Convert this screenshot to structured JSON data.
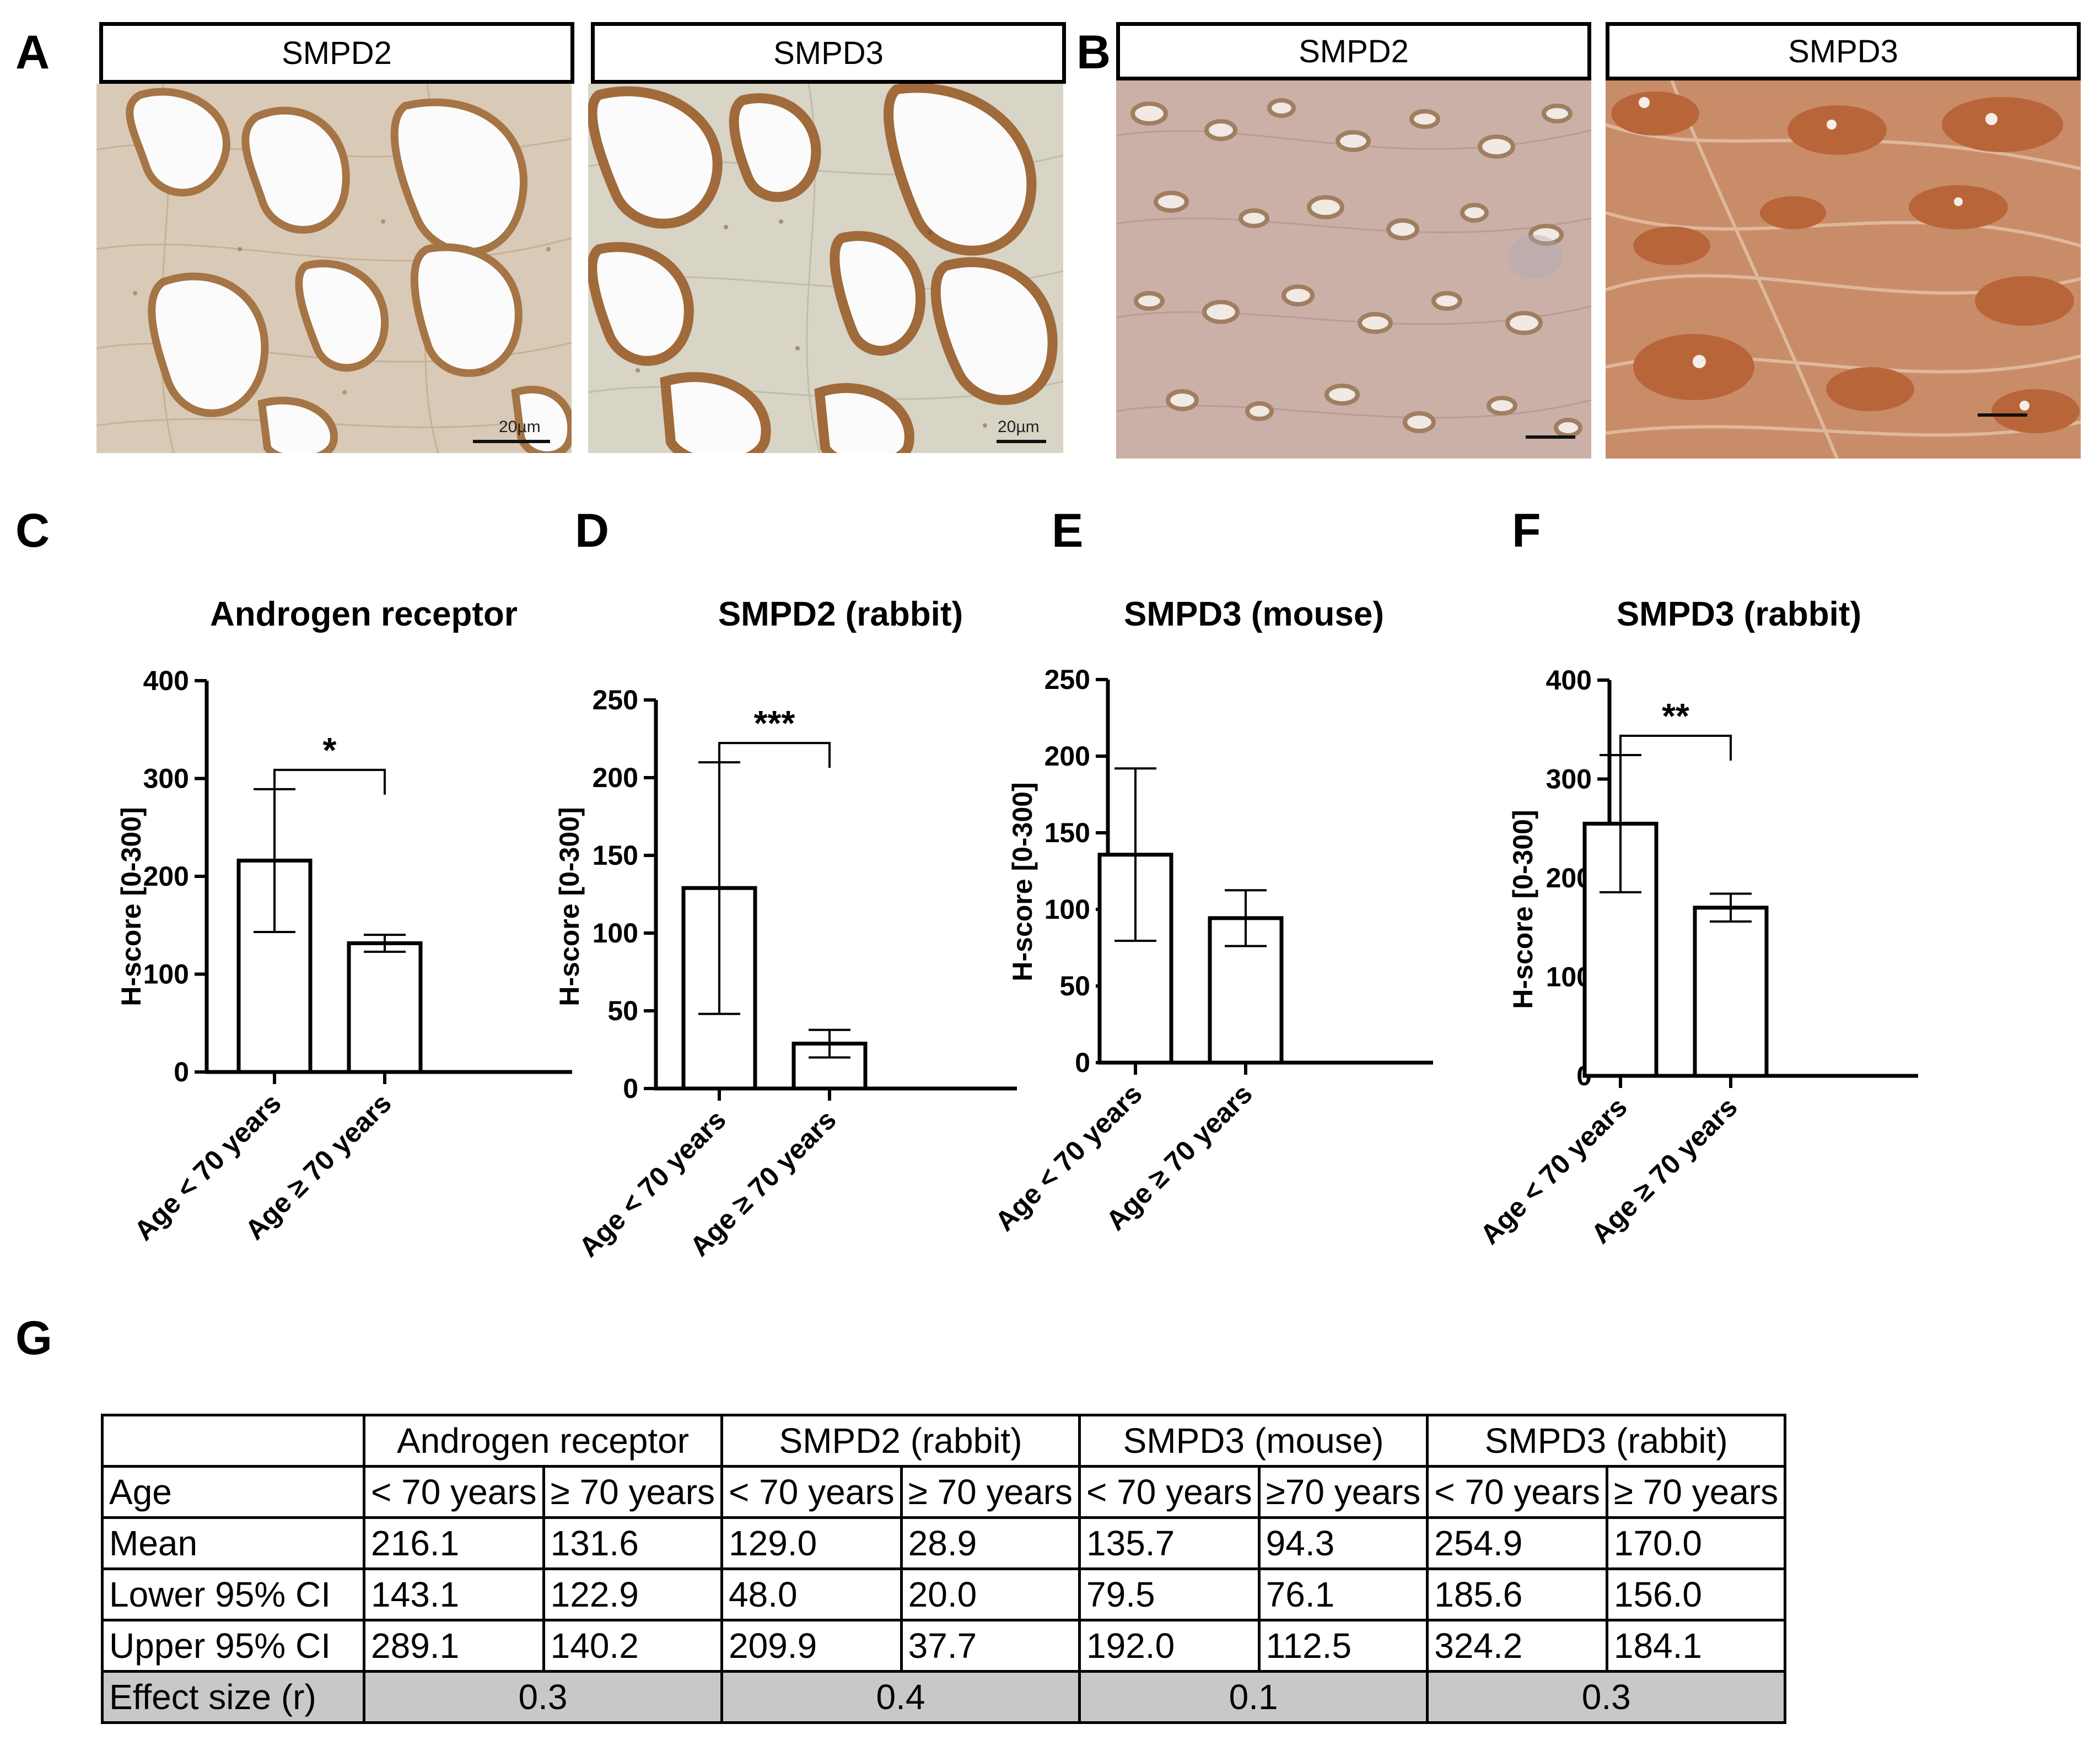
{
  "panels": {
    "A": {
      "letter": "A",
      "labels": [
        "SMPD2",
        "SMPD3"
      ],
      "scale_text": [
        "20µm",
        "20µm"
      ]
    },
    "B": {
      "letter": "B",
      "labels": [
        "SMPD2",
        "SMPD3"
      ]
    },
    "C": {
      "letter": "C"
    },
    "D": {
      "letter": "D"
    },
    "E": {
      "letter": "E"
    },
    "F": {
      "letter": "F"
    },
    "G": {
      "letter": "G"
    }
  },
  "chart_data": [
    {
      "type": "bar",
      "title": "Androgen receptor",
      "ylabel": "H-score [0-300]",
      "categories": [
        "Age < 70 years",
        "Age ≥ 70 years"
      ],
      "values": [
        216.1,
        131.6
      ],
      "ci_low": [
        143.1,
        122.9
      ],
      "ci_high": [
        289.1,
        140.2
      ],
      "ylim": [
        0,
        400
      ],
      "yticks": [
        0,
        100,
        200,
        300,
        400
      ],
      "significance": "*"
    },
    {
      "type": "bar",
      "title": "SMPD2 (rabbit)",
      "ylabel": "H-score [0-300]",
      "categories": [
        "Age < 70 years",
        "Age ≥ 70 years"
      ],
      "values": [
        129.0,
        28.9
      ],
      "ci_low": [
        48.0,
        20.0
      ],
      "ci_high": [
        209.9,
        37.7
      ],
      "ylim": [
        0,
        250
      ],
      "yticks": [
        0,
        50,
        100,
        150,
        200,
        250
      ],
      "significance": "***"
    },
    {
      "type": "bar",
      "title": "SMPD3 (mouse)",
      "ylabel": "H-score [0-300]",
      "categories": [
        "Age < 70 years",
        "Age ≥ 70 years"
      ],
      "values": [
        135.7,
        94.3
      ],
      "ci_low": [
        79.5,
        76.1
      ],
      "ci_high": [
        192.0,
        112.5
      ],
      "ylim": [
        0,
        250
      ],
      "yticks": [
        0,
        50,
        100,
        150,
        200,
        250
      ],
      "significance": ""
    },
    {
      "type": "bar",
      "title": "SMPD3 (rabbit)",
      "ylabel": "H-score [0-300]",
      "categories": [
        "Age < 70 years",
        "Age ≥ 70 years"
      ],
      "values": [
        254.9,
        170.0
      ],
      "ci_low": [
        185.6,
        156.0
      ],
      "ci_high": [
        324.2,
        184.1
      ],
      "ylim": [
        0,
        400
      ],
      "yticks": [
        0,
        100,
        200,
        300,
        400
      ],
      "significance": "**"
    }
  ],
  "table": {
    "groups": [
      "Androgen receptor",
      "SMPD2 (rabbit)",
      "SMPD3 (mouse)",
      "SMPD3 (rabbit)"
    ],
    "age_label": "Age",
    "ages": [
      "< 70 years",
      "≥ 70 years",
      "< 70 years",
      "≥ 70 years",
      "< 70 years",
      "≥70 years",
      "< 70 years",
      "≥ 70 years"
    ],
    "rows": [
      {
        "label": "Mean",
        "values": [
          "216.1",
          "131.6",
          "129.0",
          "28.9",
          "135.7",
          "94.3",
          "254.9",
          "170.0"
        ]
      },
      {
        "label": "Lower 95% CI",
        "values": [
          "143.1",
          "122.9",
          "48.0",
          "20.0",
          "79.5",
          "76.1",
          "185.6",
          "156.0"
        ]
      },
      {
        "label": "Upper 95% CI",
        "values": [
          "289.1",
          "140.2",
          "209.9",
          "37.7",
          "192.0",
          "112.5",
          "324.2",
          "184.1"
        ]
      }
    ],
    "effect_label": "Effect size (r)",
    "effect_values": [
      "0.3",
      "0.4",
      "0.1",
      "0.3"
    ],
    "effect_bg": "#c8c8c8"
  },
  "colors": {
    "benign_tissue": "#d9cab7",
    "benign_stain": "#a57546",
    "cancer_smpd2": "#cbb0a8",
    "cancer_smpd3": "#b9653a"
  }
}
